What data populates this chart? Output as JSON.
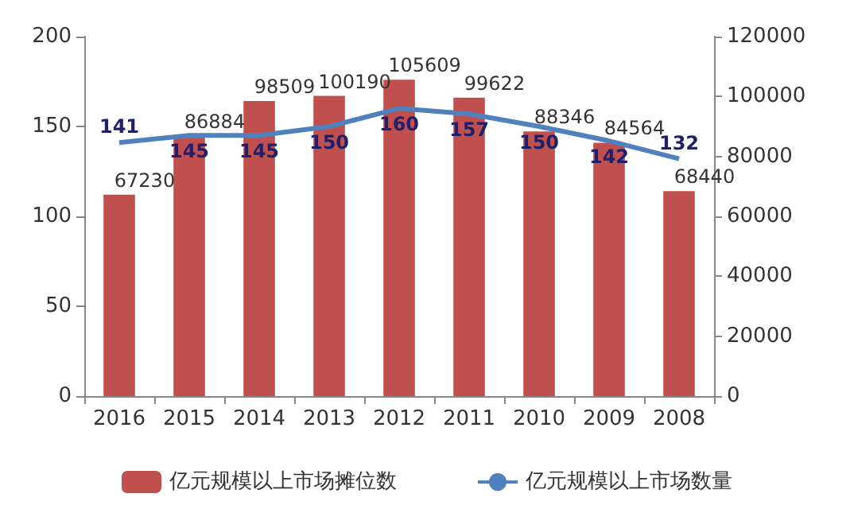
{
  "chart_data": {
    "type": "bar",
    "categories": [
      "2016",
      "2015",
      "2014",
      "2013",
      "2012",
      "2011",
      "2010",
      "2009",
      "2008"
    ],
    "series": [
      {
        "name": "亿元规模以上市场摊位数",
        "axis": "y2",
        "color": "#c0504d",
        "values": [
          67230,
          86884,
          98509,
          100190,
          105609,
          99622,
          88346,
          84564,
          68440
        ]
      },
      {
        "name": "亿元规模以上市场数量",
        "type": "line",
        "axis": "y",
        "color": "#4f81bd",
        "values": [
          141,
          145,
          145,
          150,
          160,
          157,
          150,
          142,
          132
        ]
      }
    ],
    "ylim": [
      0,
      200
    ],
    "yticks": [
      0,
      50,
      100,
      150,
      200
    ],
    "y2lim": [
      0,
      120000
    ],
    "y2ticks": [
      0,
      20000,
      40000,
      60000,
      80000,
      100000,
      120000
    ],
    "data_labels": true,
    "legend": "bottom",
    "grid": false,
    "marker": "none",
    "line_style": "solid"
  }
}
